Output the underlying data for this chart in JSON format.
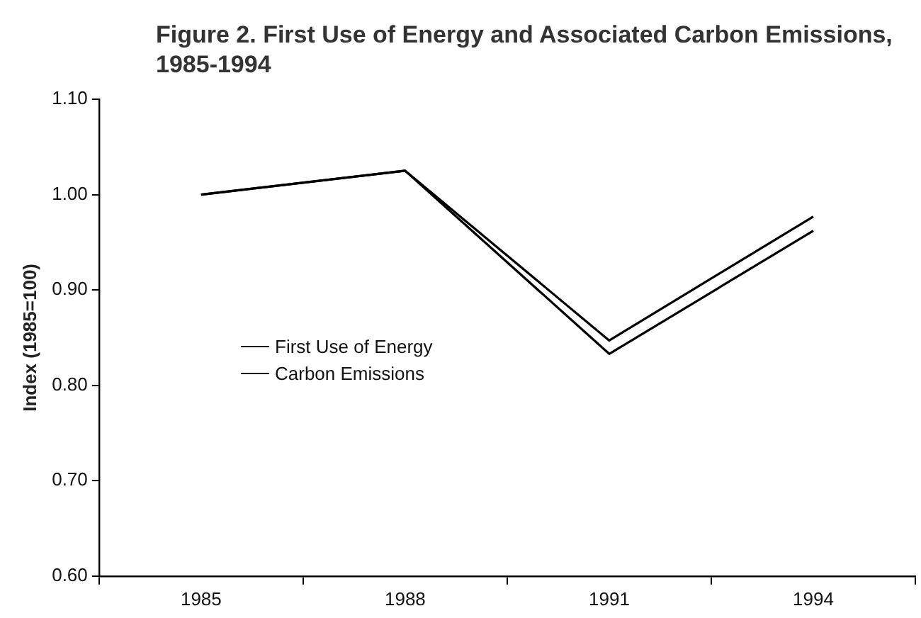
{
  "chart_data": {
    "type": "line",
    "title": "Figure 2.  First Use of Energy and Associated Carbon Emissions, 1985-1994",
    "ylabel": "Index (1985=100)",
    "categories": [
      "1985",
      "1988",
      "1991",
      "1994"
    ],
    "series": [
      {
        "name": "First Use of Energy",
        "color": "#000000",
        "values": [
          1.0,
          1.025,
          0.847,
          0.977
        ]
      },
      {
        "name": "Carbon Emissions",
        "color": "#000000",
        "values": [
          1.0,
          1.025,
          0.833,
          0.962
        ]
      }
    ],
    "ylim": [
      0.6,
      1.1
    ],
    "yticks": [
      {
        "value": 0.6,
        "label": "0.60"
      },
      {
        "value": 0.7,
        "label": "0.70"
      },
      {
        "value": 0.8,
        "label": "0.80"
      },
      {
        "value": 0.9,
        "label": "0.90"
      },
      {
        "value": 1.0,
        "label": "1.00"
      },
      {
        "value": 1.1,
        "label": "1.10"
      }
    ],
    "grid": false,
    "legend": "center left",
    "marker": "none",
    "line_style": "solid"
  }
}
